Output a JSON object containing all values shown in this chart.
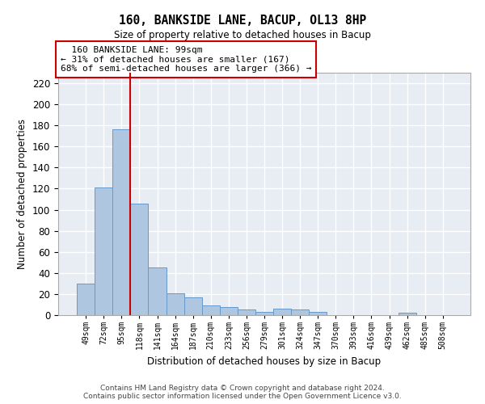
{
  "title": "160, BANKSIDE LANE, BACUP, OL13 8HP",
  "subtitle": "Size of property relative to detached houses in Bacup",
  "xlabel": "Distribution of detached houses by size in Bacup",
  "ylabel": "Number of detached properties",
  "bar_color": "#aec6df",
  "bar_edge_color": "#6699cc",
  "background_color": "#e8edf4",
  "grid_color": "#ffffff",
  "categories": [
    "49sqm",
    "72sqm",
    "95sqm",
    "118sqm",
    "141sqm",
    "164sqm",
    "187sqm",
    "210sqm",
    "233sqm",
    "256sqm",
    "279sqm",
    "301sqm",
    "324sqm",
    "347sqm",
    "370sqm",
    "393sqm",
    "416sqm",
    "439sqm",
    "462sqm",
    "485sqm",
    "508sqm"
  ],
  "values": [
    30,
    121,
    176,
    106,
    45,
    21,
    17,
    9,
    8,
    5,
    3,
    6,
    5,
    3,
    0,
    0,
    0,
    0,
    2,
    0,
    0
  ],
  "red_line_x": 2.5,
  "property_label": "160 BANKSIDE LANE: 99sqm",
  "pct_smaller": "31% of detached houses are smaller (167)",
  "pct_larger": "68% of semi-detached houses are larger (366)",
  "ylim": [
    0,
    230
  ],
  "yticks": [
    0,
    20,
    40,
    60,
    80,
    100,
    120,
    140,
    160,
    180,
    200,
    220
  ],
  "footer_line1": "Contains HM Land Registry data © Crown copyright and database right 2024.",
  "footer_line2": "Contains public sector information licensed under the Open Government Licence v3.0."
}
